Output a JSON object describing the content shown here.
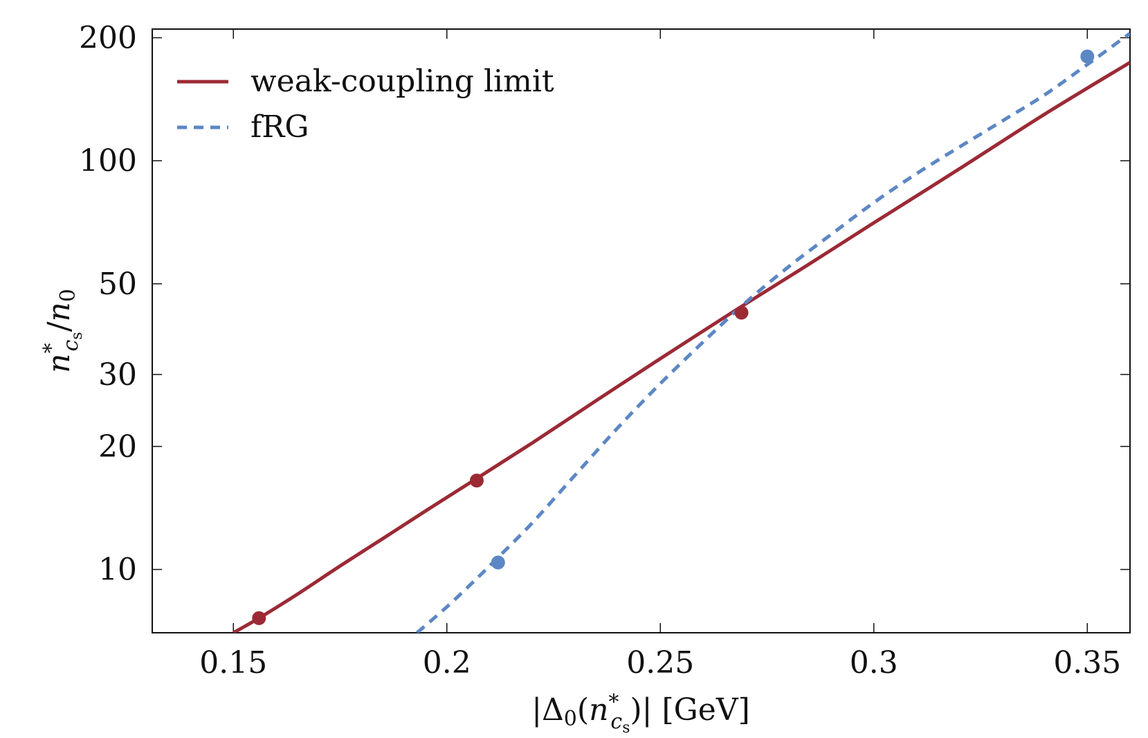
{
  "chart_data": {
    "type": "line",
    "xlabel": {
      "open": "|Δ",
      "sub0": "0",
      "paren_open": "(",
      "n": "n",
      "star": "*",
      "sub": "c",
      "subsub": "s",
      "close": ")| [GeV]"
    },
    "ylabel": {
      "n": "n",
      "star": "*",
      "sub": "c",
      "subsub": "s",
      "slash": "/",
      "n0": "n",
      "sub0": "0"
    },
    "xlim": [
      0.131,
      0.36
    ],
    "ylim": [
      7,
      210
    ],
    "yscale": "log",
    "grid": false,
    "legend_position": "top-left",
    "x_ticks": [
      {
        "value": 0.15,
        "label": "0.15"
      },
      {
        "value": 0.2,
        "label": "0.2"
      },
      {
        "value": 0.25,
        "label": "0.25"
      },
      {
        "value": 0.3,
        "label": "0.3"
      },
      {
        "value": 0.35,
        "label": "0.35"
      }
    ],
    "y_ticks": [
      {
        "value": 10,
        "label": "10"
      },
      {
        "value": 20,
        "label": "20"
      },
      {
        "value": 30,
        "label": "30"
      },
      {
        "value": 50,
        "label": "50"
      },
      {
        "value": 100,
        "label": "100"
      },
      {
        "value": 200,
        "label": "200"
      }
    ],
    "series": [
      {
        "name": "weak-coupling limit",
        "color": "#9b2a35",
        "style": "solid",
        "x": [
          0.15,
          0.156,
          0.165,
          0.175,
          0.185,
          0.195,
          0.207,
          0.22,
          0.235,
          0.25,
          0.269,
          0.285,
          0.3,
          0.32,
          0.34,
          0.36
        ],
        "y": [
          7.0,
          7.6,
          8.7,
          10.2,
          11.9,
          13.9,
          16.7,
          20.4,
          25.9,
          32.8,
          44.0,
          56.0,
          70.5,
          95.5,
          130,
          174
        ],
        "markers": {
          "x": [
            0.156,
            0.207,
            0.269
          ],
          "y": [
            7.6,
            16.5,
            42.5
          ]
        }
      },
      {
        "name": "fRG",
        "color": "#5c87c5",
        "style": "dashed",
        "x": [
          0.193,
          0.2,
          0.207,
          0.212,
          0.22,
          0.23,
          0.24,
          0.25,
          0.26,
          0.27,
          0.28,
          0.29,
          0.3,
          0.31,
          0.32,
          0.33,
          0.34,
          0.35,
          0.36
        ],
        "y": [
          7.0,
          8.1,
          9.5,
          10.7,
          13.0,
          17.0,
          22.2,
          28.5,
          36.0,
          45.0,
          55.0,
          66.0,
          79.0,
          93.0,
          108,
          125,
          145,
          172,
          205
        ],
        "markers": {
          "x": [
            0.212,
            0.35
          ],
          "y": [
            10.4,
            180
          ]
        }
      }
    ]
  }
}
